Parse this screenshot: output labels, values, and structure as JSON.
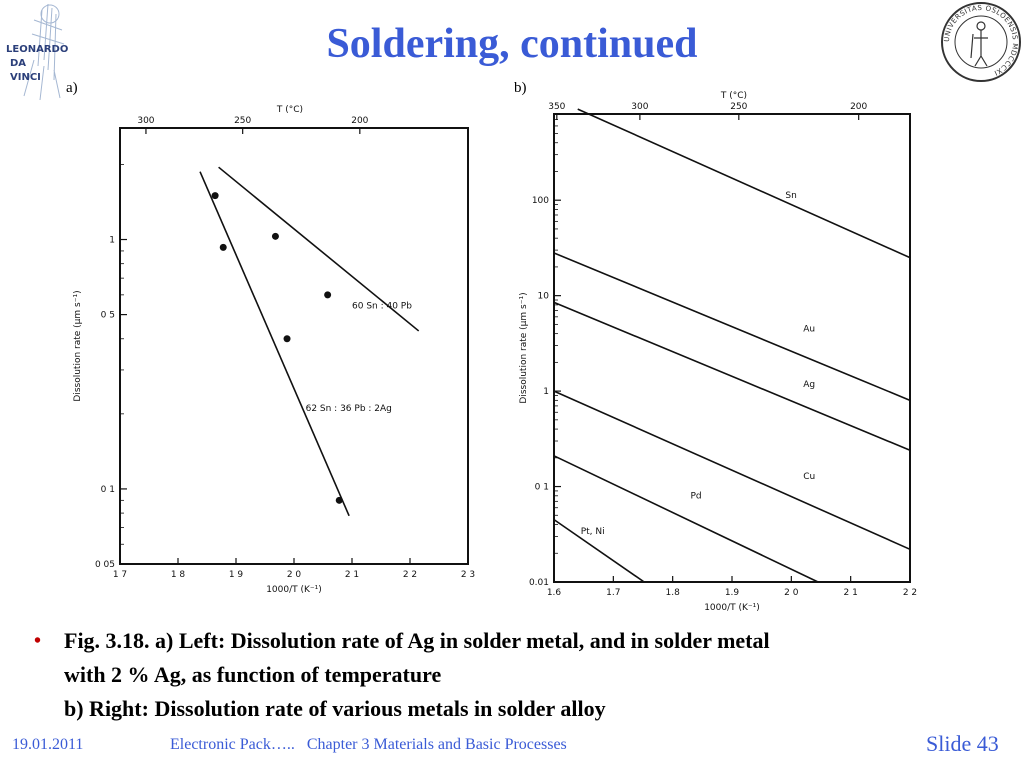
{
  "slide": {
    "title": "Soldering, continued",
    "panel_a_label": "a)",
    "panel_b_label": "b)"
  },
  "logos": {
    "left_text": [
      "LEONARDO",
      "DA",
      "VINCI"
    ],
    "right_text": "UNIVERSITAS OSLOENSIS MDCCCXI"
  },
  "caption": {
    "bullet": "•",
    "line1": "Fig. 3.18. a) Left: Dissolution rate of Ag in solder metal, and in solder metal",
    "line2": "with 2 % Ag, as function of temperature",
    "line3": "b) Right: Dissolution rate of various metals in solder alloy"
  },
  "footer": {
    "date": "19.01.2011",
    "course": "Electronic Pack…..   Chapter 3 Materials and Basic Processes",
    "slide_label": "Slide",
    "slide_number": "43"
  },
  "colors": {
    "title": "#3a5bd6",
    "bullet": "#c00000",
    "footer": "#3a5bd6"
  },
  "chart_data": [
    {
      "type": "scatter",
      "xlabel": "1000/T (K⁻¹)",
      "ylabel": "Dissolution rate (µm s⁻¹)",
      "top_axis_label": "T (°C)",
      "xlim": [
        1.7,
        2.3
      ],
      "ylim": [
        0.05,
        2.8
      ],
      "yscale": "log",
      "x_ticks": [
        1.7,
        1.8,
        1.9,
        2.0,
        2.1,
        2.2,
        2.3
      ],
      "x_tick_labels": [
        "1 7",
        "1 8",
        "1 9",
        "2 0",
        "2 1",
        "2 2",
        "2 3"
      ],
      "y_ticks": [
        0.05,
        0.1,
        0.5,
        1
      ],
      "y_tick_labels": [
        "0 05",
        "0 1",
        "0 5",
        "1"
      ],
      "top_ticks": [
        300,
        250,
        200
      ],
      "top_tick_labels": [
        "300",
        "250",
        "200"
      ],
      "series": [
        {
          "name": "60 Sn : 40 Pb",
          "points": [
            [
              1.968,
              1.03
            ],
            [
              2.058,
              0.6
            ]
          ],
          "fit": [
            [
              1.87,
              1.95
            ],
            [
              2.215,
              0.43
            ]
          ]
        },
        {
          "name": "62 Sn : 36 Pb : 2Ag",
          "points": [
            [
              1.864,
              1.5
            ],
            [
              1.878,
              0.93
            ],
            [
              1.988,
              0.4
            ],
            [
              2.078,
              0.09
            ]
          ],
          "fit": [
            [
              1.838,
              1.87
            ],
            [
              2.095,
              0.078
            ]
          ]
        }
      ]
    },
    {
      "type": "line",
      "xlabel": "1000/T (K⁻¹)",
      "ylabel": "Dissolution rate (µm s⁻¹)",
      "top_axis_label": "T (°C)",
      "xlim": [
        1.6,
        2.2
      ],
      "ylim": [
        0.01,
        800
      ],
      "yscale": "log",
      "x_ticks": [
        1.6,
        1.7,
        1.8,
        1.9,
        2.0,
        2.1,
        2.2
      ],
      "x_tick_labels": [
        "1.6",
        "1.7",
        "1.8",
        "1.9",
        "2 0",
        "2 1",
        "2 2"
      ],
      "y_ticks": [
        0.01,
        0.1,
        1,
        10,
        100
      ],
      "y_tick_labels": [
        "0.01",
        "0 1",
        "1",
        "10",
        "100"
      ],
      "top_ticks": [
        350,
        300,
        250,
        200
      ],
      "top_tick_labels": [
        "350",
        "300",
        "250",
        "200"
      ],
      "series": [
        {
          "name": "Sn",
          "x": [
            1.64,
            2.2
          ],
          "y": [
            900,
            25
          ]
        },
        {
          "name": "Au",
          "x": [
            1.6,
            2.2
          ],
          "y": [
            28,
            0.8
          ]
        },
        {
          "name": "Ag",
          "x": [
            1.6,
            2.2
          ],
          "y": [
            8.5,
            0.24
          ]
        },
        {
          "name": "Cu",
          "x": [
            1.6,
            2.2
          ],
          "y": [
            1.0,
            0.022
          ]
        },
        {
          "name": "Pd",
          "x": [
            1.6,
            2.045
          ],
          "y": [
            0.21,
            0.01
          ]
        },
        {
          "name": "Pt, Ni",
          "x": [
            1.6,
            1.752
          ],
          "y": [
            0.045,
            0.01
          ]
        }
      ]
    }
  ]
}
